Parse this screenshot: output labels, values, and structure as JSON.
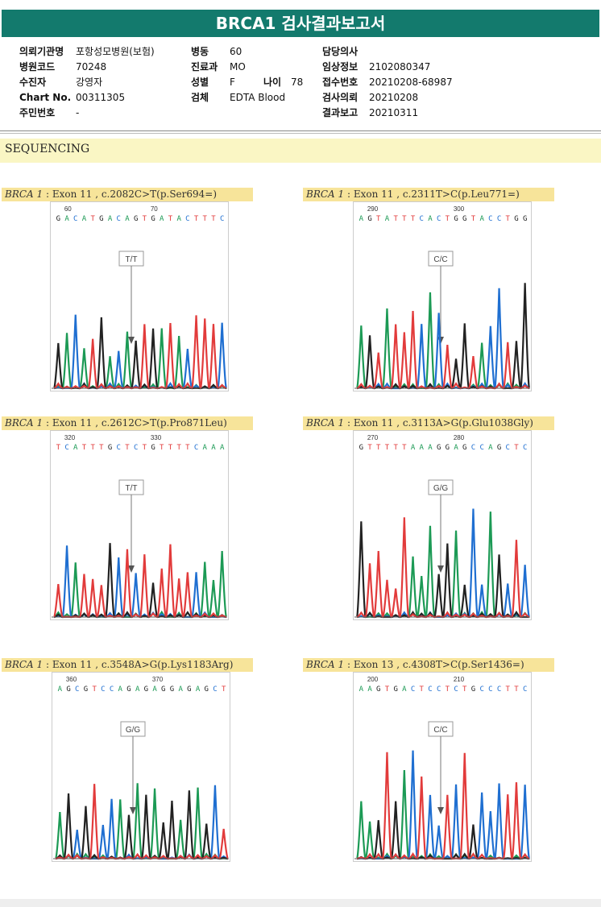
{
  "report": {
    "title": "BRCA1 검사결과보고서",
    "header_fields": [
      {
        "label": "의뢰기관명",
        "value": "포항성모병원(보험)"
      },
      {
        "label": "병원코드",
        "value": "70248"
      },
      {
        "label": "수진자",
        "value": "강영자"
      },
      {
        "label": "Chart No.",
        "value": "00311305"
      },
      {
        "label": "주민번호",
        "value": "-"
      },
      {
        "label": "병동",
        "value": "60"
      },
      {
        "label": "진료과",
        "value": "MO"
      },
      {
        "label": "성별",
        "value": "F"
      },
      {
        "label": "나이",
        "value": "78"
      },
      {
        "label": "검체",
        "value": "EDTA Blood"
      },
      {
        "label": "담당의사",
        "value": ""
      },
      {
        "label": "임상정보",
        "value": "2102080347"
      },
      {
        "label": "접수번호",
        "value": "20210208-68987"
      },
      {
        "label": "검사의뢰",
        "value": "20210208"
      },
      {
        "label": "결과보고",
        "value": "20210311"
      }
    ],
    "section_title": "SEQUENCING",
    "panels": [
      {
        "gene": "BRCA 1",
        "detail": " : Exon 11 , c.2082C>T(p.Ser694=)",
        "pos1": "60",
        "pos2": "70",
        "bases": "GACATGACAGTGATACTTTC",
        "call": "T/T"
      },
      {
        "gene": "BRCA 1",
        "detail": " : Exon 11 , c.2311T>C(p.Leu771=)",
        "pos1": "290",
        "pos2": "300",
        "bases": "AGTATTTCACTGGTACCTGG",
        "call": "C/C"
      },
      {
        "gene": "BRCA 1",
        "detail": " : Exon 11 , c.2612C>T(p.Pro871Leu)",
        "pos1": "320",
        "pos2": "330",
        "bases": "TCATTTGCTCTGTTTTCAAA",
        "call": "T/T"
      },
      {
        "gene": "BRCA 1",
        "detail": " : Exon 11 , c.3113A>G(p.Glu1038Gly)",
        "pos1": "270",
        "pos2": "280",
        "bases": "GTTTTTAAAGGAGCCAGCTC",
        "call": "G/G"
      },
      {
        "gene": "BRCA 1",
        "detail": " : Exon 11 , c.3548A>G(p.Lys1183Arg)",
        "pos1": "360",
        "pos2": "370",
        "bases": "AGCGTCCAGAGAGGAGAGCT",
        "call": "G/G"
      },
      {
        "gene": "BRCA 1",
        "detail": " : Exon 13 , c.4308T>C(p.Ser1436=)",
        "pos1": "200",
        "pos2": "210",
        "bases": "AAGTGACTCCTCTGCCCTTC",
        "call": "C/C"
      }
    ]
  },
  "colors": {
    "A": "#1c9a55",
    "C": "#1f6fd1",
    "G": "#222222",
    "T": "#e23b3b"
  }
}
